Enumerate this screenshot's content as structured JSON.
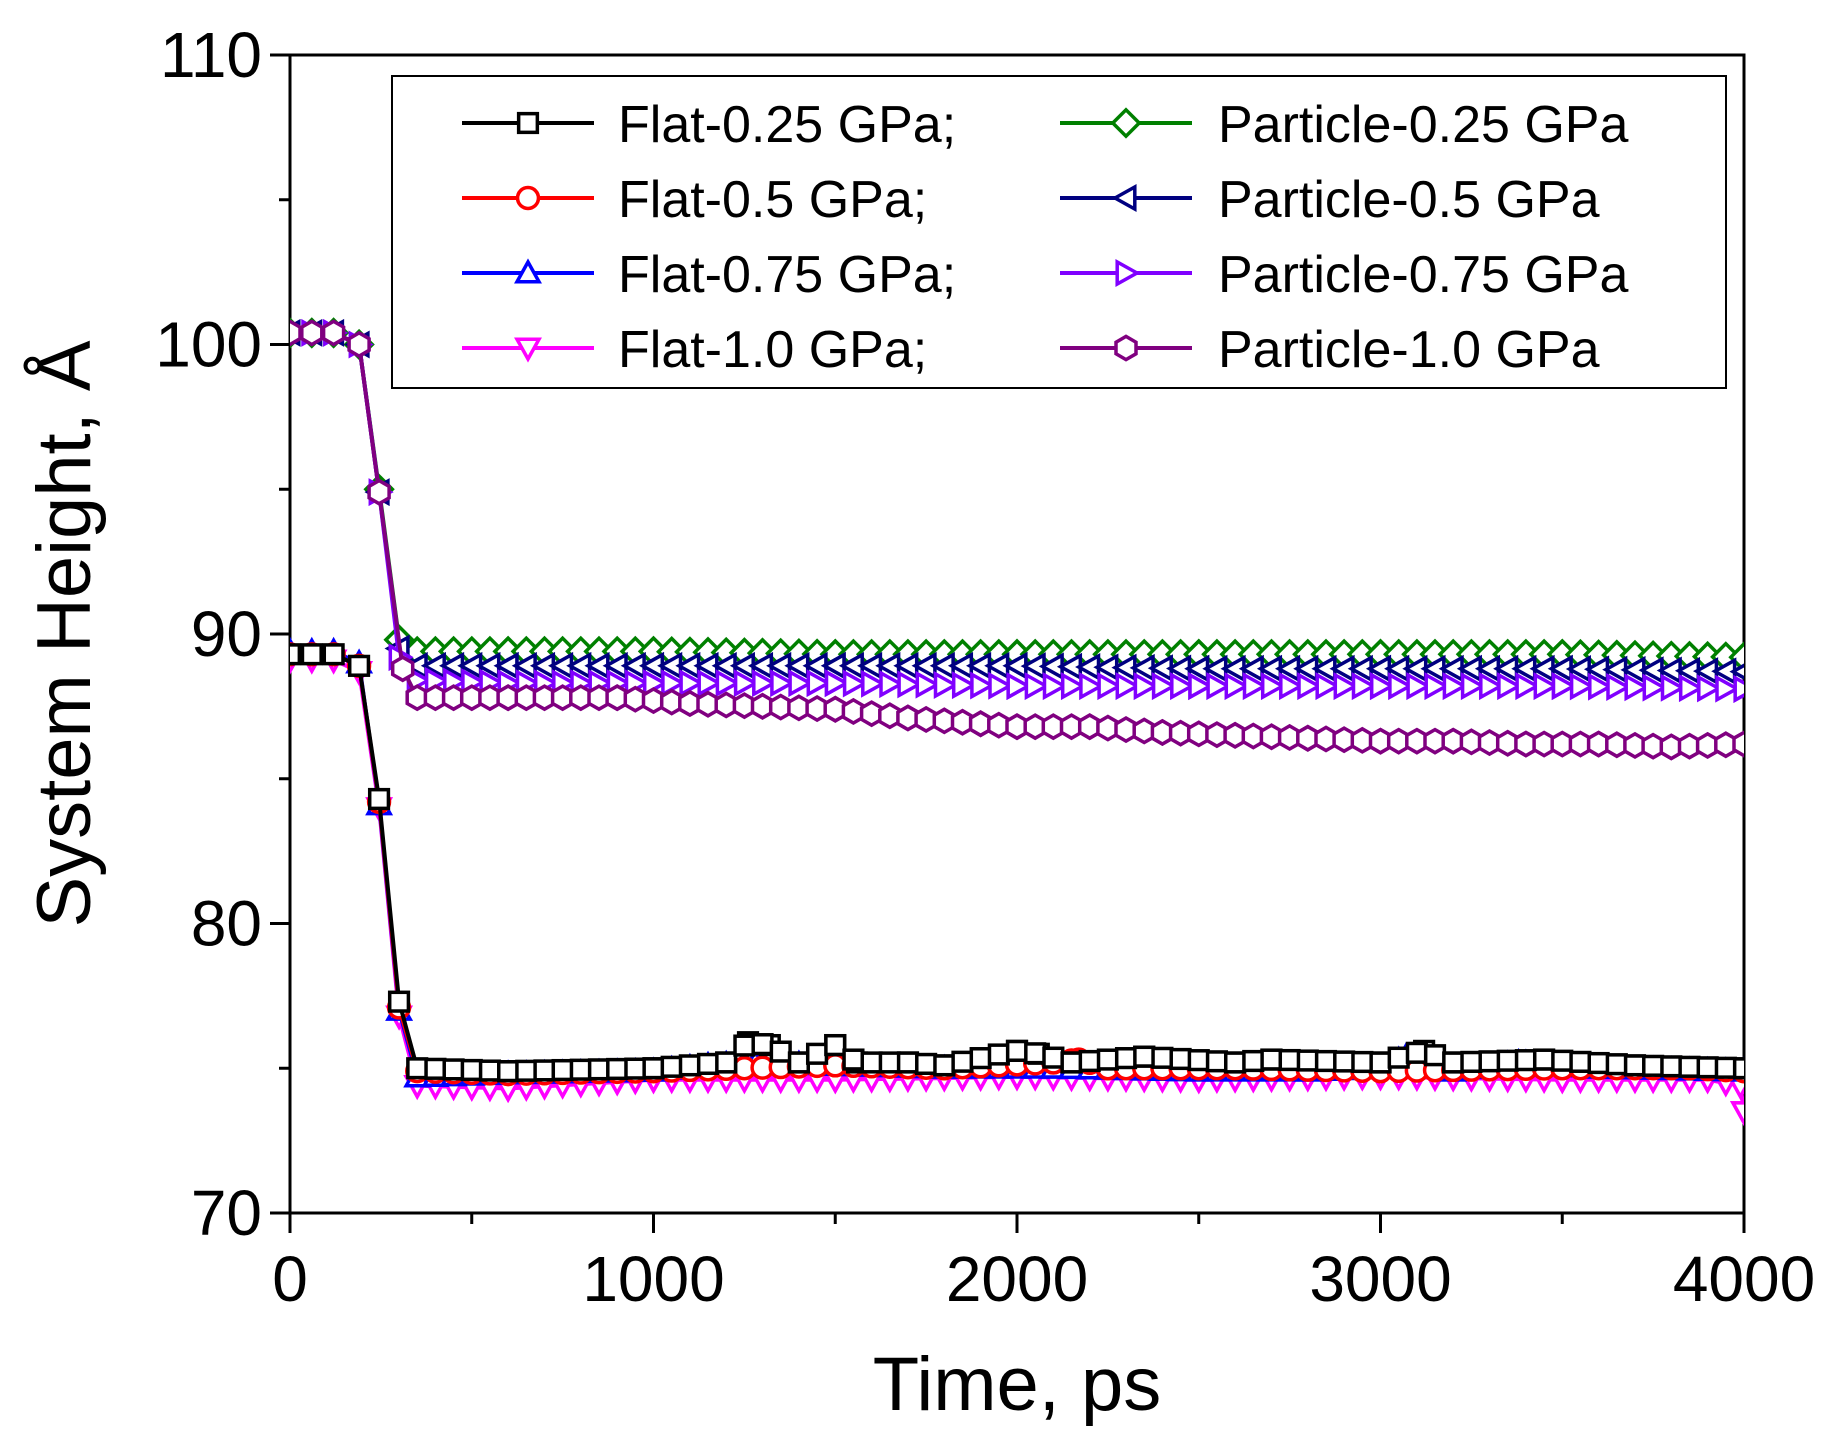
{
  "chart_data": {
    "type": "line",
    "title": "",
    "xlabel": "Time, ps",
    "ylabel": "System Height, Å",
    "xlim": [
      0,
      4000
    ],
    "ylim": [
      70,
      110
    ],
    "xticks": [
      0,
      1000,
      2000,
      3000,
      4000
    ],
    "yticks": [
      70,
      80,
      90,
      100,
      110
    ],
    "xtick_labels": [
      "0",
      "1000",
      "2000",
      "3000",
      "4000"
    ],
    "ytick_labels": [
      "70",
      "80",
      "90",
      "100",
      "110"
    ],
    "grid": false,
    "legend": "top-right, two columns",
    "series": [
      {
        "name": "Flat-0.25 GPa;",
        "color": "#000000",
        "marker": "square",
        "points": [
          [
            0,
            89.3
          ],
          [
            60,
            89.3
          ],
          [
            120,
            89.3
          ],
          [
            190,
            88.9
          ],
          [
            245,
            84.3
          ],
          [
            300,
            77.3
          ],
          [
            350,
            75.0
          ],
          [
            600,
            74.9
          ],
          [
            1000,
            75.0
          ],
          [
            1200,
            75.2
          ],
          [
            1260,
            75.9
          ],
          [
            1320,
            75.8
          ],
          [
            1400,
            75.2
          ],
          [
            1500,
            75.8
          ],
          [
            1560,
            75.2
          ],
          [
            1700,
            75.2
          ],
          [
            1800,
            75.1
          ],
          [
            2000,
            75.6
          ],
          [
            2060,
            75.5
          ],
          [
            2150,
            75.2
          ],
          [
            2350,
            75.4
          ],
          [
            2600,
            75.2
          ],
          [
            2700,
            75.3
          ],
          [
            3000,
            75.2
          ],
          [
            3120,
            75.6
          ],
          [
            3200,
            75.2
          ],
          [
            3450,
            75.3
          ],
          [
            3700,
            75.1
          ],
          [
            4000,
            75.0
          ]
        ]
      },
      {
        "name": "Flat-0.5 GPa;",
        "color": "#ff0000",
        "marker": "circle",
        "points": [
          [
            0,
            89.3
          ],
          [
            60,
            89.3
          ],
          [
            120,
            89.3
          ],
          [
            190,
            88.9
          ],
          [
            245,
            84.2
          ],
          [
            300,
            77.1
          ],
          [
            350,
            74.9
          ],
          [
            600,
            74.8
          ],
          [
            1000,
            74.9
          ],
          [
            1500,
            75.1
          ],
          [
            1800,
            75.0
          ],
          [
            2100,
            75.2
          ],
          [
            2170,
            75.3
          ],
          [
            2250,
            75.0
          ],
          [
            2600,
            75.0
          ],
          [
            3000,
            74.9
          ],
          [
            3500,
            75.0
          ],
          [
            3850,
            75.0
          ],
          [
            4000,
            74.9
          ]
        ]
      },
      {
        "name": "Flat-0.75 GPa;",
        "color": "#0000ff",
        "marker": "triangle-up",
        "points": [
          [
            0,
            89.4
          ],
          [
            60,
            89.4
          ],
          [
            120,
            89.4
          ],
          [
            190,
            89.0
          ],
          [
            245,
            84.1
          ],
          [
            300,
            77.0
          ],
          [
            350,
            74.7
          ],
          [
            600,
            74.8
          ],
          [
            1000,
            74.9
          ],
          [
            1150,
            75.1
          ],
          [
            1280,
            75.2
          ],
          [
            1500,
            75.1
          ],
          [
            1800,
            75.0
          ],
          [
            2100,
            75.0
          ],
          [
            2500,
            74.9
          ],
          [
            2800,
            74.9
          ],
          [
            3000,
            75.0
          ],
          [
            3070,
            75.4
          ],
          [
            3200,
            74.9
          ],
          [
            3380,
            75.2
          ],
          [
            3600,
            75.0
          ],
          [
            4000,
            74.9
          ]
        ]
      },
      {
        "name": "Flat-1.0 GPa;",
        "color": "#ff00ff",
        "marker": "triangle-down",
        "points": [
          [
            0,
            89.1
          ],
          [
            60,
            89.1
          ],
          [
            120,
            89.1
          ],
          [
            190,
            88.7
          ],
          [
            245,
            84.0
          ],
          [
            300,
            76.8
          ],
          [
            350,
            74.4
          ],
          [
            600,
            74.3
          ],
          [
            1000,
            74.6
          ],
          [
            1500,
            74.6
          ],
          [
            2000,
            74.7
          ],
          [
            2500,
            74.6
          ],
          [
            3000,
            74.7
          ],
          [
            3500,
            74.6
          ],
          [
            3900,
            74.6
          ],
          [
            3990,
            74.4
          ],
          [
            4000,
            73.5
          ]
        ]
      },
      {
        "name": "Particle-0.25 GPa",
        "color": "#008000",
        "marker": "diamond",
        "points": [
          [
            0,
            100.4
          ],
          [
            60,
            100.4
          ],
          [
            120,
            100.4
          ],
          [
            190,
            100.0
          ],
          [
            245,
            95.0
          ],
          [
            300,
            89.8
          ],
          [
            350,
            89.4
          ],
          [
            600,
            89.4
          ],
          [
            1000,
            89.4
          ],
          [
            1500,
            89.3
          ],
          [
            2000,
            89.3
          ],
          [
            2500,
            89.3
          ],
          [
            3000,
            89.3
          ],
          [
            3500,
            89.3
          ],
          [
            4000,
            89.2
          ]
        ]
      },
      {
        "name": "Particle-0.5 GPa",
        "color": "#000080",
        "marker": "triangle-left",
        "points": [
          [
            0,
            100.4
          ],
          [
            60,
            100.4
          ],
          [
            120,
            100.4
          ],
          [
            190,
            100.0
          ],
          [
            245,
            94.9
          ],
          [
            300,
            89.5
          ],
          [
            350,
            88.9
          ],
          [
            600,
            88.9
          ],
          [
            1000,
            88.9
          ],
          [
            1500,
            88.9
          ],
          [
            2000,
            88.9
          ],
          [
            2500,
            88.8
          ],
          [
            3000,
            88.8
          ],
          [
            3500,
            88.8
          ],
          [
            4000,
            88.7
          ]
        ]
      },
      {
        "name": "Particle-0.75 GPa",
        "color": "#8000ff",
        "marker": "triangle-right",
        "points": [
          [
            0,
            100.4
          ],
          [
            60,
            100.4
          ],
          [
            120,
            100.4
          ],
          [
            190,
            100.0
          ],
          [
            245,
            94.9
          ],
          [
            300,
            89.2
          ],
          [
            350,
            88.4
          ],
          [
            600,
            88.3
          ],
          [
            1000,
            88.3
          ],
          [
            1500,
            88.3
          ],
          [
            2000,
            88.2
          ],
          [
            2500,
            88.2
          ],
          [
            3000,
            88.2
          ],
          [
            3500,
            88.2
          ],
          [
            4000,
            88.1
          ]
        ]
      },
      {
        "name": "Particle-1.0 GPa",
        "color": "#800080",
        "marker": "hexagon",
        "points": [
          [
            0,
            100.4
          ],
          [
            60,
            100.4
          ],
          [
            120,
            100.4
          ],
          [
            190,
            100.0
          ],
          [
            245,
            94.9
          ],
          [
            310,
            88.8
          ],
          [
            350,
            87.8
          ],
          [
            600,
            87.8
          ],
          [
            900,
            87.8
          ],
          [
            1100,
            87.6
          ],
          [
            1300,
            87.5
          ],
          [
            1500,
            87.4
          ],
          [
            1700,
            87.1
          ],
          [
            1900,
            86.9
          ],
          [
            2000,
            86.8
          ],
          [
            2200,
            86.8
          ],
          [
            2400,
            86.6
          ],
          [
            2600,
            86.5
          ],
          [
            2800,
            86.4
          ],
          [
            3000,
            86.3
          ],
          [
            3200,
            86.3
          ],
          [
            3400,
            86.2
          ],
          [
            3600,
            86.2
          ],
          [
            3800,
            86.1
          ],
          [
            4000,
            86.2
          ]
        ]
      }
    ]
  }
}
